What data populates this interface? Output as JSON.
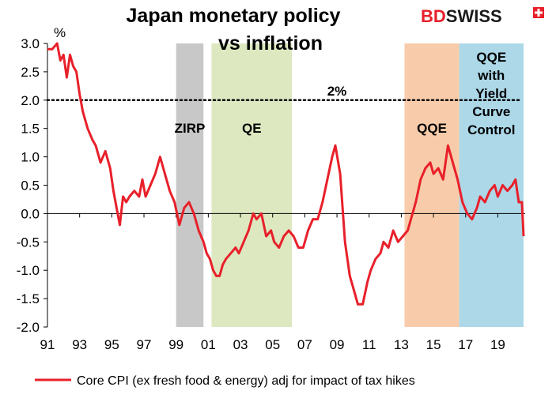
{
  "chart_data": {
    "type": "line",
    "title": [
      "Japan monetary policy",
      "vs inflation"
    ],
    "unit_label": "%",
    "ylim": [
      -2.0,
      3.0
    ],
    "y_ticks": [
      "3.0",
      "2.5",
      "2.0",
      "1.5",
      "1.0",
      "0.5",
      "0.0",
      "-0.5",
      "-1.0",
      "-1.5",
      "-2.0"
    ],
    "x_ticks": [
      "91",
      "93",
      "95",
      "97",
      "99",
      "01",
      "03",
      "05",
      "07",
      "09",
      "11",
      "13",
      "15",
      "17",
      "19"
    ],
    "xlim": [
      1991,
      2020.7
    ],
    "reference_line": {
      "value": 2.0,
      "label": "2%"
    },
    "regimes": [
      {
        "label": [
          "ZIRP"
        ],
        "start": 1999.0,
        "end": 2000.7,
        "color": "#c8c8c8"
      },
      {
        "label": [
          "QE"
        ],
        "start": 2001.2,
        "end": 2006.2,
        "color": "#dde8c0"
      },
      {
        "label": [
          "QQE"
        ],
        "start": 2013.2,
        "end": 2016.6,
        "color": "#f8ccaa"
      },
      {
        "label": [
          "QQE",
          "with",
          "Yield",
          "Curve",
          "Control"
        ],
        "start": 2016.6,
        "end": 2020.6,
        "color": "#acd8e8"
      }
    ],
    "series": [
      {
        "name": "Core CPI (ex fresh food & energy) adj for impact of tax hikes",
        "color": "#e8202a",
        "x": [
          1991.0,
          1991.3,
          1991.6,
          1991.8,
          1992.0,
          1992.2,
          1992.4,
          1992.6,
          1992.8,
          1993.0,
          1993.2,
          1993.5,
          1993.8,
          1994.0,
          1994.3,
          1994.6,
          1994.9,
          1995.1,
          1995.3,
          1995.5,
          1995.7,
          1995.9,
          1996.1,
          1996.4,
          1996.7,
          1996.9,
          1997.1,
          1997.4,
          1997.7,
          1998.0,
          1998.3,
          1998.6,
          1998.9,
          1999.2,
          1999.5,
          1999.8,
          2000.1,
          2000.4,
          2000.7,
          2000.9,
          2001.1,
          2001.3,
          2001.5,
          2001.7,
          2001.9,
          2002.1,
          2002.4,
          2002.7,
          2002.9,
          2003.2,
          2003.5,
          2003.8,
          2004.0,
          2004.3,
          2004.6,
          2004.9,
          2005.1,
          2005.4,
          2005.7,
          2006.0,
          2006.3,
          2006.6,
          2006.9,
          2007.2,
          2007.5,
          2007.8,
          2008.1,
          2008.4,
          2008.7,
          2008.9,
          2009.2,
          2009.5,
          2009.8,
          2010.0,
          2010.3,
          2010.6,
          2010.9,
          2011.1,
          2011.4,
          2011.7,
          2011.9,
          2012.2,
          2012.5,
          2012.8,
          2013.1,
          2013.4,
          2013.7,
          2013.9,
          2014.2,
          2014.5,
          2014.8,
          2015.0,
          2015.3,
          2015.6,
          2015.9,
          2016.2,
          2016.5,
          2016.8,
          2017.1,
          2017.4,
          2017.7,
          2017.9,
          2018.2,
          2018.5,
          2018.8,
          2019.0,
          2019.3,
          2019.6,
          2019.9,
          2020.1,
          2020.3,
          2020.5,
          2020.6
        ],
        "y": [
          2.9,
          2.9,
          3.0,
          2.7,
          2.8,
          2.4,
          2.8,
          2.6,
          2.5,
          2.1,
          1.8,
          1.5,
          1.3,
          1.2,
          0.9,
          1.1,
          0.8,
          0.4,
          0.1,
          -0.2,
          0.3,
          0.2,
          0.3,
          0.4,
          0.3,
          0.6,
          0.3,
          0.5,
          0.7,
          1.0,
          0.7,
          0.4,
          0.2,
          -0.2,
          0.1,
          0.2,
          0.0,
          -0.3,
          -0.5,
          -0.7,
          -0.8,
          -1.0,
          -1.1,
          -1.1,
          -0.9,
          -0.8,
          -0.7,
          -0.6,
          -0.7,
          -0.5,
          -0.3,
          0.0,
          -0.1,
          0.0,
          -0.4,
          -0.3,
          -0.5,
          -0.6,
          -0.4,
          -0.3,
          -0.4,
          -0.6,
          -0.6,
          -0.3,
          -0.1,
          -0.1,
          0.2,
          0.6,
          1.0,
          1.2,
          0.7,
          -0.5,
          -1.1,
          -1.3,
          -1.6,
          -1.6,
          -1.2,
          -1.0,
          -0.8,
          -0.7,
          -0.5,
          -0.6,
          -0.3,
          -0.5,
          -0.4,
          -0.3,
          0.0,
          0.2,
          0.6,
          0.8,
          0.9,
          0.7,
          0.8,
          0.6,
          1.2,
          0.9,
          0.6,
          0.2,
          0.0,
          -0.1,
          0.1,
          0.3,
          0.2,
          0.4,
          0.5,
          0.3,
          0.5,
          0.4,
          0.5,
          0.6,
          0.2,
          0.2,
          -0.4
        ]
      }
    ],
    "legend_placement": "bottom",
    "grid": false
  },
  "brand": {
    "logo_bd": "BD",
    "logo_swiss": "SWISS",
    "color_bd": "#e8202a",
    "color_swiss": "#1a1a1a",
    "flag_color": "#e8202a"
  },
  "colors": {
    "line": "#e8202a",
    "axis": "#000000",
    "dotted": "#000000"
  }
}
